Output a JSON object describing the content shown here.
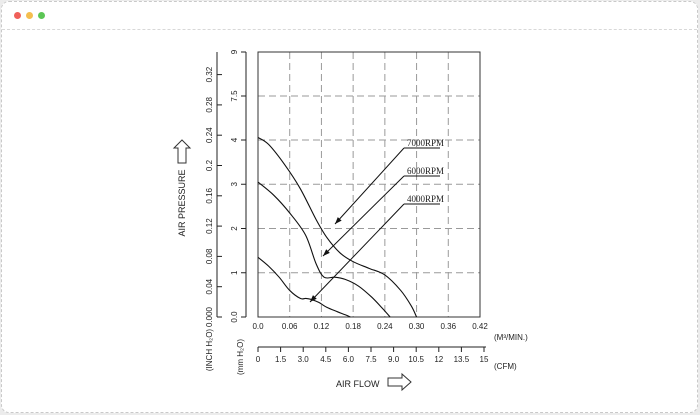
{
  "window": {
    "controls": [
      "close",
      "minimize",
      "maximize"
    ]
  },
  "chart_data": {
    "type": "line",
    "title": "",
    "xlabel": "AIR FLOW",
    "ylabel": "AIR PRESSURE",
    "x_primary": {
      "unit": "(M³/MIN.)",
      "ticks": [
        "0.0",
        "0.06",
        "0.12",
        "0.18",
        "0.24",
        "0.30",
        "0.36",
        "0.42"
      ],
      "range": [
        0,
        0.42
      ]
    },
    "x_secondary": {
      "unit": "(CFM)",
      "ticks": [
        "0",
        "1.5",
        "3.0",
        "4.5",
        "6.0",
        "7.5",
        "9.0",
        "10.5",
        "12",
        "13.5",
        "15"
      ]
    },
    "y_primary": {
      "unit": "(mm H₂O)",
      "ticks": [
        "0.0",
        "1",
        "2",
        "3",
        "4",
        "7.5",
        "9"
      ]
    },
    "y_secondary": {
      "unit": "(INCH H₂O)",
      "ticks": [
        "0.000",
        "0.04",
        "0.08",
        "0.12",
        "0.16",
        "0.2",
        "0.24",
        "0.28",
        "0.32"
      ]
    },
    "grid": true,
    "series": [
      {
        "name": "7000RPM",
        "x": [
          0.0,
          0.02,
          0.05,
          0.08,
          0.11,
          0.13,
          0.155,
          0.18,
          0.21,
          0.24,
          0.27,
          0.29,
          0.3
        ],
        "y": [
          4.2,
          3.9,
          3.45,
          2.9,
          2.2,
          1.8,
          1.45,
          1.25,
          1.1,
          0.95,
          0.6,
          0.25,
          0.0
        ]
      },
      {
        "name": "6000RPM",
        "x": [
          0.0,
          0.03,
          0.06,
          0.09,
          0.11,
          0.125,
          0.145,
          0.165,
          0.19,
          0.215,
          0.235,
          0.25
        ],
        "y": [
          3.05,
          2.75,
          2.35,
          1.85,
          1.2,
          0.9,
          0.9,
          0.85,
          0.7,
          0.45,
          0.2,
          0.0
        ]
      },
      {
        "name": "4000RPM",
        "x": [
          0.0,
          0.02,
          0.04,
          0.06,
          0.08,
          0.09,
          0.1,
          0.115,
          0.13,
          0.15,
          0.165,
          0.175
        ],
        "y": [
          1.35,
          1.15,
          0.9,
          0.6,
          0.42,
          0.42,
          0.4,
          0.33,
          0.22,
          0.12,
          0.05,
          0.0
        ]
      }
    ],
    "legend_placement": "callouts"
  }
}
